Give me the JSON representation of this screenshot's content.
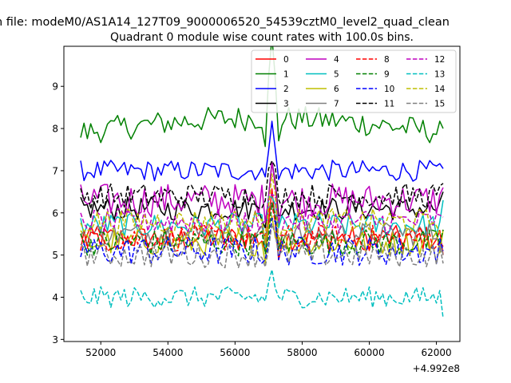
{
  "figure": {
    "suptitle": "n file: modeM0/AS1A14_127T09_9000006520_54539cztM0_level2_quad_clean"
  },
  "chart_data": {
    "type": "line",
    "title": "Quadrant 0 module wise count rates with 100.0s bins.",
    "xlabel": "",
    "ylabel": "",
    "x_offset_label": "+4.992e8",
    "x_start": 51400,
    "x_end": 62200,
    "x_step": 100,
    "xlim": [
      50900,
      62700
    ],
    "ylim": [
      2.95,
      9.95
    ],
    "xticks": [
      52000,
      54000,
      56000,
      58000,
      60000,
      62000
    ],
    "xtick_labels": [
      "52000",
      "54000",
      "56000",
      "58000",
      "60000",
      "62000"
    ],
    "yticks": [
      3,
      4,
      5,
      6,
      7,
      8,
      9
    ],
    "ytick_labels": [
      "3",
      "4",
      "5",
      "6",
      "7",
      "8",
      "9"
    ],
    "grid": false,
    "legend_position": "upper-right",
    "spike_x": 57100,
    "series": [
      {
        "name": "0",
        "color": "#ff0000",
        "dash": "solid",
        "mean": 5.4,
        "noise": 0.3,
        "spike": 0.9,
        "end": 5.0
      },
      {
        "name": "1",
        "color": "#008000",
        "dash": "solid",
        "mean": 7.9,
        "noise": 0.3,
        "spike": 1.8,
        "end": 8.0,
        "ramp": 0.35
      },
      {
        "name": "2",
        "color": "#0000ff",
        "dash": "solid",
        "mean": 7.0,
        "noise": 0.25,
        "spike": 1.4,
        "end": 7.05
      },
      {
        "name": "3",
        "color": "#000000",
        "dash": "solid",
        "mean": 6.1,
        "noise": 0.28,
        "spike": 1.0,
        "end": 6.5
      },
      {
        "name": "4",
        "color": "#bf00bf",
        "dash": "solid",
        "mean": 6.3,
        "noise": 0.4,
        "spike": 1.0,
        "end": 6.6
      },
      {
        "name": "5",
        "color": "#00bfbf",
        "dash": "solid",
        "mean": 5.7,
        "noise": 0.3,
        "spike": 0.9,
        "end": 6.3
      },
      {
        "name": "6",
        "color": "#bfbf00",
        "dash": "solid",
        "mean": 5.3,
        "noise": 0.32,
        "spike": 0.8,
        "end": 5.6
      },
      {
        "name": "7",
        "color": "#808080",
        "dash": "solid",
        "mean": 5.5,
        "noise": 0.28,
        "spike": 0.8,
        "end": 5.0
      },
      {
        "name": "8",
        "color": "#ff0000",
        "dash": "dashed",
        "mean": 5.4,
        "noise": 0.32,
        "spike": 0.9,
        "end": 5.2
      },
      {
        "name": "9",
        "color": "#008000",
        "dash": "dashed",
        "mean": 5.3,
        "noise": 0.32,
        "spike": 0.9,
        "end": 5.6
      },
      {
        "name": "10",
        "color": "#0000ff",
        "dash": "dashed",
        "mean": 5.1,
        "noise": 0.35,
        "spike": 0.9,
        "end": 5.1
      },
      {
        "name": "11",
        "color": "#000000",
        "dash": "dashed",
        "mean": 6.4,
        "noise": 0.3,
        "spike": 1.0,
        "end": 6.7
      },
      {
        "name": "12",
        "color": "#bf00bf",
        "dash": "dashed",
        "mean": 5.8,
        "noise": 0.3,
        "spike": 0.9,
        "end": 5.9
      },
      {
        "name": "13",
        "color": "#00bfbf",
        "dash": "dashed",
        "mean": 4.0,
        "noise": 0.25,
        "spike": 0.7,
        "end": 3.5
      },
      {
        "name": "14",
        "color": "#bfbf00",
        "dash": "dashed",
        "mean": 5.8,
        "noise": 0.3,
        "spike": 0.9,
        "end": 5.5
      },
      {
        "name": "15",
        "color": "#808080",
        "dash": "dashed",
        "mean": 5.0,
        "noise": 0.3,
        "spike": 0.8,
        "end": 4.8
      }
    ]
  }
}
